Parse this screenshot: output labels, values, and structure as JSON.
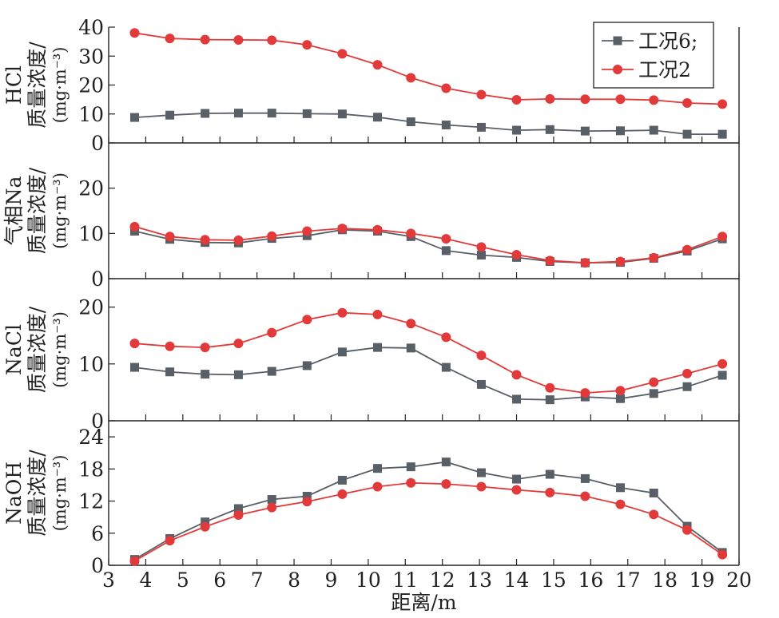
{
  "x_axis": {
    "label": "距离/m",
    "ticks": [
      "3",
      "4",
      "5",
      "6",
      "7",
      "8",
      "9",
      "10",
      "11",
      "12",
      "13",
      "14",
      "15",
      "16",
      "17",
      "18",
      "19",
      "20"
    ]
  },
  "legend": {
    "entries": [
      {
        "label": "工况6;",
        "color": "#595f66",
        "marker": "square"
      },
      {
        "label": "工况2",
        "color": "#e23a3a",
        "marker": "circle"
      }
    ]
  },
  "chart_data": [
    {
      "type": "line",
      "ylabel": {
        "line1": "HCl",
        "line2": "质量浓度/",
        "line3": "(mg·m⁻³)"
      },
      "ylim": [
        0,
        40
      ],
      "yticks": [
        "0",
        "10",
        "20",
        "30",
        "40"
      ],
      "x": [
        3.7,
        4.65,
        5.6,
        6.5,
        7.4,
        8.35,
        9.3,
        10.25,
        11.15,
        12.1,
        13.05,
        14.0,
        14.9,
        15.85,
        16.8,
        17.7,
        18.6,
        19.55
      ],
      "series": [
        {
          "name": "工况6;",
          "color": "#595f66",
          "marker": "square",
          "values": [
            8.8,
            9.6,
            10.2,
            10.3,
            10.3,
            10.1,
            10.0,
            8.9,
            7.3,
            6.2,
            5.4,
            4.4,
            4.6,
            4.1,
            4.2,
            4.4,
            3.0,
            3.0
          ]
        },
        {
          "name": "工况2",
          "color": "#e23a3a",
          "marker": "circle",
          "values": [
            38.0,
            36.1,
            35.7,
            35.6,
            35.5,
            33.9,
            30.8,
            27.0,
            22.5,
            18.9,
            16.7,
            14.9,
            15.2,
            15.1,
            15.1,
            14.8,
            13.8,
            13.4
          ]
        }
      ]
    },
    {
      "type": "line",
      "ylabel": {
        "line1": "气相Na",
        "line2": "质量浓度/",
        "line3": "(mg·m⁻³)"
      },
      "ylim": [
        0,
        30
      ],
      "yticks": [
        "0",
        "10",
        "20"
      ],
      "x": [
        3.7,
        4.65,
        5.6,
        6.5,
        7.4,
        8.35,
        9.3,
        10.25,
        11.15,
        12.1,
        13.05,
        14.0,
        14.9,
        15.85,
        16.8,
        17.7,
        18.6,
        19.55
      ],
      "series": [
        {
          "name": "工况6;",
          "color": "#595f66",
          "marker": "square",
          "values": [
            10.5,
            8.7,
            8.0,
            7.9,
            8.9,
            9.5,
            10.8,
            10.5,
            9.3,
            6.2,
            5.2,
            4.7,
            3.8,
            3.5,
            3.6,
            4.5,
            6.1,
            8.8
          ]
        },
        {
          "name": "工况2",
          "color": "#e23a3a",
          "marker": "circle",
          "values": [
            11.5,
            9.3,
            8.6,
            8.5,
            9.4,
            10.5,
            11.1,
            10.8,
            10.0,
            8.8,
            7.0,
            5.3,
            4.0,
            3.5,
            3.8,
            4.6,
            6.4,
            9.3
          ]
        }
      ]
    },
    {
      "type": "line",
      "ylabel": {
        "line1": "NaCl",
        "line2": "质量浓度/",
        "line3": "(mg·m⁻³)"
      },
      "ylim": [
        0,
        25
      ],
      "yticks": [
        "0",
        "10",
        "20"
      ],
      "x": [
        3.7,
        4.65,
        5.6,
        6.5,
        7.4,
        8.35,
        9.3,
        10.25,
        11.15,
        12.1,
        13.05,
        14.0,
        14.9,
        15.85,
        16.8,
        17.7,
        18.6,
        19.55
      ],
      "series": [
        {
          "name": "工况6;",
          "color": "#595f66",
          "marker": "square",
          "values": [
            9.4,
            8.6,
            8.2,
            8.1,
            8.7,
            9.7,
            12.1,
            12.9,
            12.8,
            9.4,
            6.4,
            3.8,
            3.7,
            4.2,
            3.9,
            4.8,
            6.0,
            8.0
          ]
        },
        {
          "name": "工况2",
          "color": "#e23a3a",
          "marker": "circle",
          "values": [
            13.6,
            13.1,
            12.9,
            13.6,
            15.5,
            17.8,
            19.0,
            18.7,
            17.1,
            14.7,
            11.5,
            8.1,
            5.8,
            4.9,
            5.3,
            6.8,
            8.3,
            10.0
          ]
        }
      ]
    },
    {
      "type": "line",
      "ylabel": {
        "line1": "NaOH",
        "line2": "质量浓度/",
        "line3": "(mg·m⁻³)"
      },
      "ylim": [
        0,
        27
      ],
      "yticks": [
        "0",
        "6",
        "12",
        "18",
        "24"
      ],
      "x": [
        3.7,
        4.65,
        5.6,
        6.5,
        7.4,
        8.35,
        9.3,
        10.25,
        11.15,
        12.1,
        13.05,
        14.0,
        14.9,
        15.85,
        16.8,
        17.7,
        18.6,
        19.55
      ],
      "series": [
        {
          "name": "工况6;",
          "color": "#595f66",
          "marker": "square",
          "values": [
            1.1,
            5.0,
            8.1,
            10.6,
            12.3,
            12.9,
            15.9,
            18.1,
            18.4,
            19.3,
            17.3,
            16.1,
            17.0,
            16.2,
            14.5,
            13.5,
            7.3,
            2.4
          ]
        },
        {
          "name": "工况2",
          "color": "#e23a3a",
          "marker": "circle",
          "values": [
            0.8,
            4.6,
            7.2,
            9.4,
            10.8,
            11.9,
            13.3,
            14.7,
            15.4,
            15.2,
            14.7,
            14.1,
            13.6,
            12.9,
            11.4,
            9.5,
            6.6,
            2.0
          ]
        }
      ]
    }
  ]
}
